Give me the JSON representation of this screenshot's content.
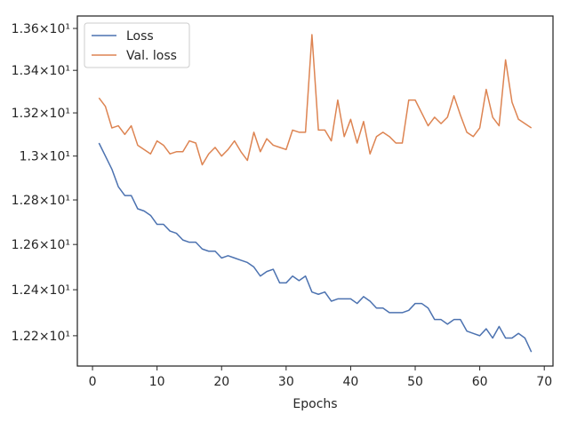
{
  "chart_data": {
    "type": "line",
    "x_label": "Epochs",
    "x": [
      1,
      2,
      3,
      4,
      5,
      6,
      7,
      8,
      9,
      10,
      11,
      12,
      13,
      14,
      15,
      16,
      17,
      18,
      19,
      20,
      21,
      22,
      23,
      24,
      25,
      26,
      27,
      28,
      29,
      30,
      31,
      32,
      33,
      34,
      35,
      36,
      37,
      38,
      39,
      40,
      41,
      42,
      43,
      44,
      45,
      46,
      47,
      48,
      49,
      50,
      51,
      52,
      53,
      54,
      55,
      56,
      57,
      58,
      59,
      60,
      61,
      62,
      63,
      64,
      65,
      66,
      67,
      68
    ],
    "series": [
      {
        "name": "Loss",
        "color": "#4c72b0",
        "values": [
          13.06,
          13.0,
          12.94,
          12.86,
          12.82,
          12.82,
          12.76,
          12.75,
          12.73,
          12.69,
          12.69,
          12.66,
          12.65,
          12.62,
          12.61,
          12.61,
          12.58,
          12.57,
          12.57,
          12.54,
          12.55,
          12.54,
          12.53,
          12.52,
          12.5,
          12.46,
          12.48,
          12.49,
          12.43,
          12.43,
          12.46,
          12.44,
          12.46,
          12.39,
          12.38,
          12.39,
          12.35,
          12.36,
          12.36,
          12.36,
          12.34,
          12.37,
          12.35,
          12.32,
          12.32,
          12.3,
          12.3,
          12.3,
          12.31,
          12.34,
          12.34,
          12.32,
          12.27,
          12.27,
          12.25,
          12.27,
          12.27,
          12.22,
          12.21,
          12.2,
          12.23,
          12.19,
          12.24,
          12.19,
          12.19,
          12.21,
          12.19,
          12.13
        ]
      },
      {
        "name": "Val. loss",
        "color": "#dd8452",
        "values": [
          13.27,
          13.23,
          13.13,
          13.14,
          13.1,
          13.14,
          13.05,
          13.03,
          13.01,
          13.07,
          13.05,
          13.01,
          13.02,
          13.02,
          13.07,
          13.06,
          12.96,
          13.01,
          13.04,
          13.0,
          13.03,
          13.07,
          13.02,
          12.98,
          13.11,
          13.02,
          13.08,
          13.05,
          13.04,
          13.03,
          13.12,
          13.11,
          13.11,
          13.57,
          13.12,
          13.12,
          13.07,
          13.26,
          13.09,
          13.17,
          13.06,
          13.16,
          13.01,
          13.09,
          13.11,
          13.09,
          13.06,
          13.06,
          13.26,
          13.26,
          13.2,
          13.14,
          13.18,
          13.15,
          13.18,
          13.28,
          13.19,
          13.11,
          13.09,
          13.13,
          13.31,
          13.18,
          13.14,
          13.45,
          13.25,
          13.17,
          13.15,
          13.13
        ]
      }
    ],
    "xlim": [
      -2.35,
      71.35
    ],
    "xticks": [
      0,
      10,
      20,
      30,
      40,
      50,
      60,
      70
    ],
    "ylim": [
      12.07,
      13.66
    ],
    "y_scale": "log",
    "yticks": [
      {
        "value": 12.2,
        "label": "1.22×10¹"
      },
      {
        "value": 12.4,
        "label": "1.24×10¹"
      },
      {
        "value": 12.6,
        "label": "1.26×10¹"
      },
      {
        "value": 12.8,
        "label": "1.28×10¹"
      },
      {
        "value": 13.0,
        "label": "1.3×10¹"
      },
      {
        "value": 13.2,
        "label": "1.32×10¹"
      },
      {
        "value": 13.4,
        "label": "1.34×10¹"
      },
      {
        "value": 13.6,
        "label": "1.36×10¹"
      }
    ],
    "legend": "upper left",
    "grid": false
  }
}
